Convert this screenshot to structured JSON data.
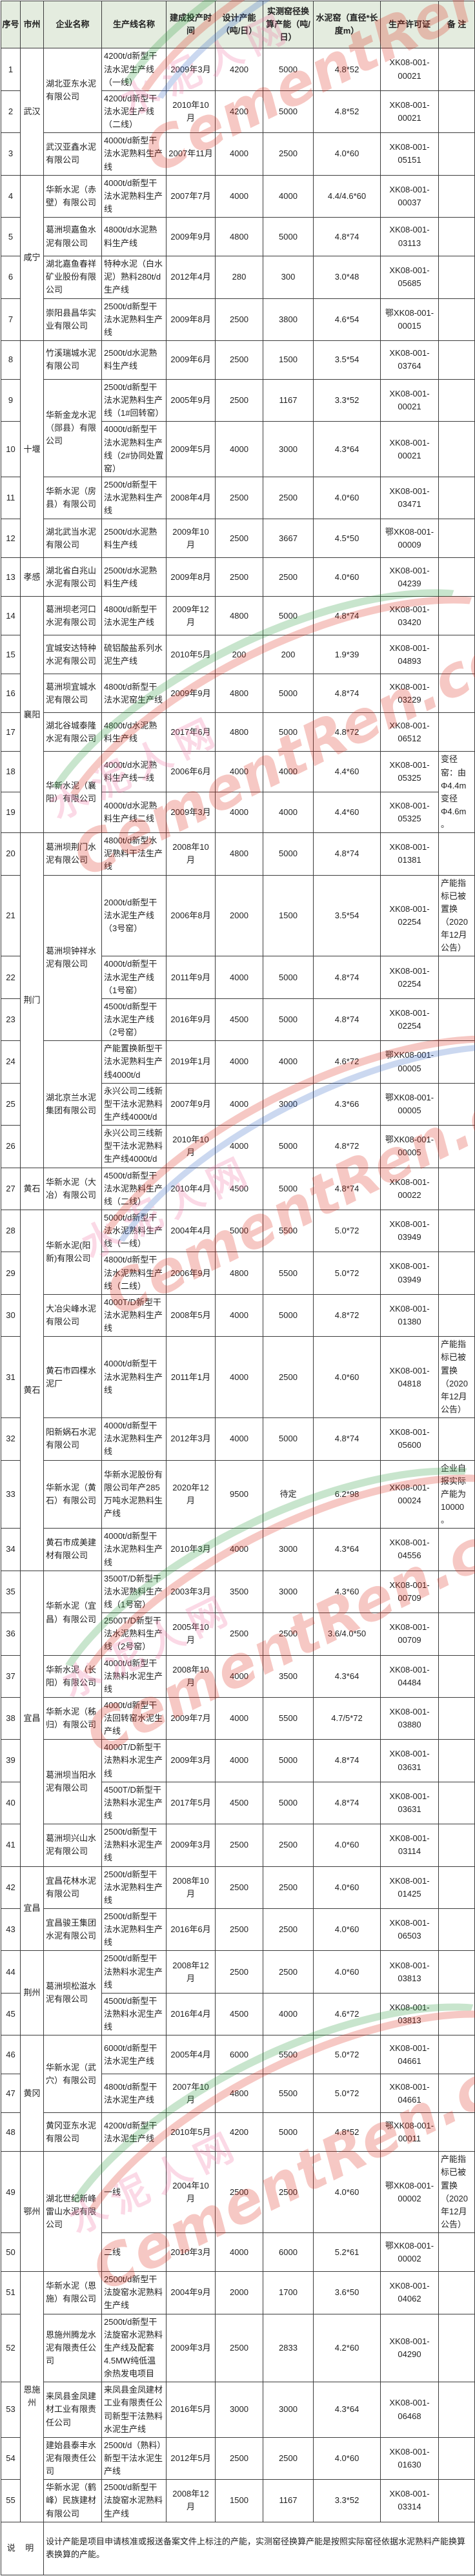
{
  "colors": {
    "header_bg": "#e4ecdf",
    "wm_red": "#e0301e",
    "wm_pink": "#f06ea0",
    "wm_green": "#2f9e41",
    "wm_blue": "#3a6bc9"
  },
  "watermark": {
    "cn": "水泥人网",
    "en": "CementRen.com"
  },
  "footer": {
    "label": "说 明",
    "text": "设计产能是项目申请核准或报送备案文件上标注的产能，实测窑径换算产能是按照实际窑径依据水泥熟料产能换算表换算的产能。"
  },
  "table": {
    "headers": [
      "序号",
      "市州",
      "企业名称",
      "生产线名称",
      "建成投产时间",
      "设计产能（吨/日）",
      "实测窑径换算产能（吨/日）",
      "水泥窑（直径*长度m）",
      "生产许可证",
      "备 注"
    ],
    "rows": [
      {
        "no": "1",
        "city": "武汉",
        "citySpan": 3,
        "company": "湖北亚东水泥有限公司",
        "companySpan": 2,
        "line": "4200t/d新型干法水泥生产线（一线）",
        "time": "2009年3月",
        "design": "4200",
        "actual": "5000",
        "kiln": "4.8*52",
        "license": "XK08-001-00021"
      },
      {
        "no": "2",
        "line": "4200t/d新型干法水泥生产线（二线）",
        "time": "2010年10月",
        "design": "4200",
        "actual": "5000",
        "kiln": "4.8*52",
        "license": "XK08-001-00021"
      },
      {
        "no": "3",
        "company": "武汉亚鑫水泥有限公司",
        "line": "4000t/d新型干法水泥熟料生产线",
        "time": "2007年11月",
        "design": "4000",
        "actual": "2500",
        "kiln": "4.0*60",
        "license": "XK08-001-05151"
      },
      {
        "no": "4",
        "city": "咸宁",
        "citySpan": 4,
        "company": "华新水泥（赤壁）有限公司",
        "line": "4000t/d新型干法水泥熟料生产线",
        "time": "2007年7月",
        "design": "4000",
        "actual": "4000",
        "kiln": "4.4/4.6*60",
        "license": "XK08-001-00037"
      },
      {
        "no": "5",
        "company": "葛洲坝嘉鱼水泥有限公司",
        "line": "4800t/d水泥熟料生产线",
        "time": "2009年9月",
        "design": "4800",
        "actual": "5000",
        "kiln": "4.8*74",
        "license": "XK08-001-03113"
      },
      {
        "no": "6",
        "company": "湖北嘉鱼春祥矿业股份有限公司",
        "line": "特种水泥（白水泥）熟料280t/d生产线",
        "time": "2012年4月",
        "design": "280",
        "actual": "300",
        "kiln": "3.0*48",
        "license": "XK08-001-05685"
      },
      {
        "no": "7",
        "company": "崇阳县昌华实业有限公司",
        "line": "2500t/d新型干法水泥熟料生产线",
        "time": "2009年8月",
        "design": "2500",
        "actual": "3800",
        "kiln": "4.6*54",
        "license": "鄂XK08-001-00015"
      },
      {
        "no": "8",
        "city": "十堰",
        "citySpan": 5,
        "company": "竹溪瑞城水泥有限公司",
        "line": "2500t/d水泥熟料生产线",
        "time": "2009年6月",
        "design": "2500",
        "actual": "1500",
        "kiln": "3.5*54",
        "license": "XK08-001-03764"
      },
      {
        "no": "9",
        "company": "华新金龙水泥（郧县）有限公司",
        "companySpan": 2,
        "line": "2500t/d新型干法水泥熟料生产线（1#回转窑）",
        "time": "2005年9月",
        "design": "2500",
        "actual": "1167",
        "kiln": "3.3*52",
        "license": "XK08-001-00021"
      },
      {
        "no": "10",
        "line": "4000t/d新型干法水泥熟料生产线（2#协同处置窑）",
        "time": "2009年5月",
        "design": "4000",
        "actual": "3000",
        "kiln": "4.3*64",
        "license": "XK08-001-00021"
      },
      {
        "no": "11",
        "company": "华新水泥（房县）有限公司",
        "line": "2500t/d新型干法水泥熟料生产线",
        "time": "2008年4月",
        "design": "2500",
        "actual": "2500",
        "kiln": "4.0*60",
        "license": "XK08-001-03471"
      },
      {
        "no": "12",
        "company": "湖北武当水泥有限公司",
        "line": "2500t/d水泥熟料生产线",
        "time": "2009年10月",
        "design": "2500",
        "actual": "3667",
        "kiln": "4.5*50",
        "license": "鄂XK08-001-00009"
      },
      {
        "no": "13",
        "city": "孝感",
        "company": "湖北省白兆山水泥有限公司",
        "line": "2500t/d水泥熟料生产线",
        "time": "2009年8月",
        "design": "2500",
        "actual": "2500",
        "kiln": "4.0*60",
        "license": "XK08-001-04239"
      },
      {
        "no": "14",
        "city": "襄阳",
        "citySpan": 6,
        "company": "葛洲坝老河口水泥有限公司",
        "line": "4800t/d新型干法水泥生产线",
        "time": "2009年12月",
        "design": "4800",
        "actual": "5000",
        "kiln": "4.8*74",
        "license": "XK08-001-03420"
      },
      {
        "no": "15",
        "company": "宜城安达特种水泥有限公司",
        "line": "硫铝酸盐系列水泥生产线",
        "time": "2010年5月",
        "design": "200",
        "actual": "200",
        "kiln": "1.9*39",
        "license": "XK08-001-04893"
      },
      {
        "no": "16",
        "company": "葛洲坝宜城水泥有限公司",
        "line": "4800t/d新型干法水泥窑生产线",
        "time": "2009年9月",
        "design": "4800",
        "actual": "5000",
        "kiln": "4.8*74",
        "license": "XK08-001-03229"
      },
      {
        "no": "17",
        "company": "湖北谷城泰隆水泥有限公司",
        "line": "4800t/d水泥熟料生产线",
        "time": "2017年6月",
        "design": "4800",
        "actual": "5000",
        "kiln": "4.8*72",
        "license": "XK08-001-06512"
      },
      {
        "no": "18",
        "company": "华新水泥（襄阳）有限公司",
        "companySpan": 2,
        "line": "4000t/d水泥熟料生产线一线",
        "time": "2006年6月",
        "design": "4000",
        "actual": "4000",
        "kiln": "4.4*60",
        "license": "XK08-001-05325",
        "remark": "变径窑：由Φ4.4m变径Φ4.6m。",
        "remarkSpan": 2
      },
      {
        "no": "19",
        "line": "4000t/d水泥熟料生产线二线",
        "time": "2009年3月",
        "design": "4000",
        "actual": "4000",
        "kiln": "4.4*60",
        "license": "XK08-001-05325",
        "remarkMerged": true
      },
      {
        "no": "20",
        "city": "荆门",
        "citySpan": 7,
        "company": "葛洲坝荆门水泥有限公司",
        "line": "4800t/d新型水泥熟料干法生产线",
        "time": "2008年10月",
        "design": "4800",
        "actual": "5000",
        "kiln": "4.8*74",
        "license": "XK08-001-01381"
      },
      {
        "no": "21",
        "company": "葛洲坝钟祥水泥有限公司",
        "companySpan": 3,
        "line": "2000t/d新型干法水泥生产线（3号窑）",
        "time": "2006年8月",
        "design": "2000",
        "actual": "1500",
        "kiln": "3.5*54",
        "license": "XK08-001-02254",
        "remark": "产能指标已被置换（2020年12月公告）"
      },
      {
        "no": "22",
        "line": "4000t/d新型干法水泥生产线（1号窑）",
        "time": "2011年9月",
        "design": "4000",
        "actual": "5000",
        "kiln": "4.8*74",
        "license": "XK08-001-02254"
      },
      {
        "no": "23",
        "line": "4500t/d新型干法水泥生产线（2号窑）",
        "time": "2016年9月",
        "design": "4500",
        "actual": "5000",
        "kiln": "4.8*74",
        "license": "XK08-001-02254"
      },
      {
        "no": "24",
        "company": "湖北京兰水泥集团有限公司",
        "companySpan": 3,
        "line": "产能置换新型干法水泥熟料生产线4000t/d",
        "time": "2019年1月",
        "design": "4000",
        "actual": "4000",
        "kiln": "4.6*72",
        "license": "鄂XK08-001-00005"
      },
      {
        "no": "25",
        "line": "永兴公司二线新型干法水泥熟料生产线4000t/d",
        "time": "2007年9月",
        "design": "4000",
        "actual": "3000",
        "kiln": "4.3*66",
        "license": "鄂XK08-001-00005"
      },
      {
        "no": "26",
        "line": "永兴公司三线新型干法水泥熟料生产线4000t/d",
        "time": "2010年10月",
        "design": "4000",
        "actual": "5000",
        "kiln": "4.8*72",
        "license": "鄂XK08-001-00005"
      },
      {
        "no": "27",
        "city": "黄石",
        "company": "华新水泥（大冶）有限公司",
        "line": "4500t/d新型干法水泥熟料生产线（二线）",
        "time": "2010年4月",
        "design": "4500",
        "actual": "5000",
        "kiln": "4.8*74",
        "license": "XK08-001-00022"
      },
      {
        "no": "28",
        "city": "黄石",
        "citySpan": 7,
        "company": "华新水泥(阳新)有限公司",
        "companySpan": 2,
        "line": "5000t/d新型干法水泥熟料生产线（一线）",
        "time": "2004年4月",
        "design": "5000",
        "actual": "5500",
        "kiln": "5.0*72",
        "license": "XK08-001-03949"
      },
      {
        "no": "29",
        "line": "4800t/d新型干法水泥熟料生产线（二线）",
        "time": "2006年9月",
        "design": "4800",
        "actual": "5500",
        "kiln": "5.0*72",
        "license": "XK08-001-03949"
      },
      {
        "no": "30",
        "company": "大冶尖峰水泥有限公司",
        "line": "4000T/D新型干法水泥熟料生产线",
        "time": "2008年5月",
        "design": "4000",
        "actual": "5000",
        "kiln": "4.8*72",
        "license": "XK08-001-01380"
      },
      {
        "no": "31",
        "company": "黄石市四棵水泥厂",
        "line": "4000t/d新型干法水泥熟料生产线",
        "time": "2011年1月",
        "design": "4000",
        "actual": "2500",
        "kiln": "4.0*60",
        "license": "XK08-001-04818",
        "remark": "产能指标已被置换（2020年12月公告）"
      },
      {
        "no": "32",
        "company": "阳新娲石水泥有限公司",
        "line": "4000t/d新型干法水泥熟料生产线",
        "time": "2012年3月",
        "design": "4000",
        "actual": "5000",
        "kiln": "4.8*74",
        "license": "XK08-001-05600"
      },
      {
        "no": "33",
        "company": "华新水泥（黄石）有限公司",
        "line": "华新水泥股份有限公司年产285万吨水泥熟料生产线",
        "time": "2020年12月",
        "design": "9500",
        "actual": "待定",
        "kiln": "6.2*98",
        "license": "XK08-001-00024",
        "remark": "企业自报实际产能为10000。"
      },
      {
        "no": "34",
        "company": "黄石市成美建材有限公司",
        "line": "4000t/d新型干法水泥熟料生产线",
        "time": "2010年3月",
        "design": "4000",
        "actual": "3000",
        "kiln": "4.3*64",
        "license": "XK08-001-04556"
      },
      {
        "no": "35",
        "city": "宜昌",
        "citySpan": 7,
        "company": "华新水泥（宜昌）有限公司",
        "companySpan": 2,
        "line": "3500T/D新型干法水泥熟料生产线（1号窑）",
        "time": "2003年3月",
        "design": "3500",
        "actual": "3000",
        "kiln": "4.3*60",
        "license": "XK08-001-00709"
      },
      {
        "no": "36",
        "line": "2500T/D新型干法水泥熟料生产线（2号窑）",
        "time": "2005年10月",
        "design": "2500",
        "actual": "2500",
        "kiln": "3.6/4.0*50",
        "license": "XK08-001-00709"
      },
      {
        "no": "37",
        "company": "华新水泥（长阳）有限公司",
        "line": "4000t/d新型干法熟料水泥生产线",
        "time": "2008年10月",
        "design": "4000",
        "actual": "3500",
        "kiln": "4.3*64",
        "license": "XK08-001-04484"
      },
      {
        "no": "38",
        "company": "华新水泥（秭归）有限公司",
        "line": "4000t/d新型干法回转窑水泥生产线",
        "time": "2009年7月",
        "design": "4000",
        "actual": "5500",
        "kiln": "4.7/5*72",
        "license": "XK08-001-03880"
      },
      {
        "no": "39",
        "company": "葛洲坝当阳水泥有限公司",
        "companySpan": 2,
        "line": "4000T/D新型干法熟料水泥生产线",
        "time": "2009年3月",
        "design": "4000",
        "actual": "5000",
        "kiln": "4.8*74",
        "license": "XK08-001-03631"
      },
      {
        "no": "40",
        "line": "4500T/D新型干法熟料水泥生产线",
        "time": "2017年5月",
        "design": "4500",
        "actual": "5000",
        "kiln": "4.8*74",
        "license": "XK08-001-03631"
      },
      {
        "no": "41",
        "company": "葛洲坝兴山水泥有限公司",
        "line": "2500t/d新型干法熟料水泥生产线",
        "time": "2009年3月",
        "design": "2500",
        "actual": "2500",
        "kiln": "4.0*60",
        "license": "XK08-001-03114"
      },
      {
        "no": "42",
        "city": "宜昌",
        "citySpan": 2,
        "company": "宜昌花林水泥有限公司",
        "line": "2500t/d新型干法水泥熟料生产线",
        "time": "2008年10月",
        "design": "2500",
        "actual": "2500",
        "kiln": "4.0*60",
        "license": "XK08-001-01425"
      },
      {
        "no": "43",
        "company": "宜昌骏王集团水泥有限公司",
        "line": "2500t/d新型干法水泥熟料生产线",
        "time": "2016年6月",
        "design": "2500",
        "actual": "2500",
        "kiln": "4.0*60",
        "license": "XK08-001-06503"
      },
      {
        "no": "44",
        "city": "荆州",
        "citySpan": 2,
        "company": "葛洲坝松滋水泥有限公司",
        "companySpan": 2,
        "line": "2500t/d新型干法熟料水泥生产线",
        "time": "2008年12月",
        "design": "2500",
        "actual": "2500",
        "kiln": "4.0*60",
        "license": "XK08-001-03813"
      },
      {
        "no": "45",
        "line": "4500t/d新型干法熟料水泥生产线",
        "time": "2016年4月",
        "design": "4500",
        "actual": "4000",
        "kiln": "4.6*72",
        "license": "XK08-001-03813"
      },
      {
        "no": "46",
        "city": "黄冈",
        "citySpan": 3,
        "company": "华新水泥（武穴）有限公司",
        "companySpan": 2,
        "line": "6000t/d新型干法水泥生产线",
        "time": "2005年4月",
        "design": "6000",
        "actual": "5500",
        "kiln": "5.0*72",
        "license": "XK08-001-04661"
      },
      {
        "no": "47",
        "line": "4800t/d新型干法水泥生产线",
        "time": "2007年10月",
        "design": "4800",
        "actual": "5500",
        "kiln": "5.0*72",
        "license": "XK08-001-04661"
      },
      {
        "no": "48",
        "company": "黄冈亚东水泥有限公司",
        "line": "4200t/d新型干法水泥生产线",
        "time": "2010年5月",
        "design": "4200",
        "actual": "5000",
        "kiln": "4.8*52",
        "license": "鄂XK08-001-00011"
      },
      {
        "no": "49",
        "city": "鄂州",
        "citySpan": 2,
        "company": "湖北世纪新峰雷山水泥有限公司",
        "companySpan": 2,
        "line": "一线",
        "time": "2004年10月",
        "design": "2500",
        "actual": "2500",
        "kiln": "4.0*60",
        "license": "鄂XK08-001-00002",
        "remark": "产能指标已被置换（2020年12月公告）"
      },
      {
        "no": "50",
        "line": "二线",
        "time": "2010年3月",
        "design": "4000",
        "actual": "6000",
        "kiln": "5.2*61",
        "license": "鄂XK08-001-00002"
      },
      {
        "no": "51",
        "city": "恩施州",
        "citySpan": 5,
        "company": "华新水泥（恩施）有限公司",
        "line": "2500t/d新型干法旋窑水泥熟料生产线",
        "time": "2004年9月",
        "design": "2000",
        "actual": "1700",
        "kiln": "3.6*50",
        "license": "XK08-001-04062"
      },
      {
        "no": "52",
        "company": "恩施州腾龙水泥有限责任公司",
        "line": "2500t/d新型干法旋窑水泥熟料生产线及配套4.5MW纯低温余热发电项目",
        "time": "2009年3月",
        "design": "2500",
        "actual": "2833",
        "kiln": "4.2*60",
        "license": "XK08-001-04290"
      },
      {
        "no": "53",
        "company": "来凤县金凤建材工业有限责任公司",
        "line": "来凤县金凤建材工业有限责任公司新型干法熟料水泥生产线",
        "time": "2016年5月",
        "design": "3000",
        "actual": "3000",
        "kiln": "4.3*64",
        "license": "XK08-001-06468"
      },
      {
        "no": "54",
        "company": "建始县泰丰水泥有限责任公司",
        "line": "2500t/d（熟料）新型干法水泥生产线",
        "time": "2012年5月",
        "design": "2500",
        "actual": "2500",
        "kiln": "4.0*60",
        "license": "XK08-001-01630"
      },
      {
        "no": "55",
        "company": "华新水泥（鹤峰）民族建材有限公司",
        "line": "2500t/d新型干法旋窑水泥熟料生产线",
        "time": "2008年12月",
        "design": "1500",
        "actual": "1167",
        "kiln": "3.3*52",
        "license": "XK08-001-03314"
      }
    ]
  }
}
